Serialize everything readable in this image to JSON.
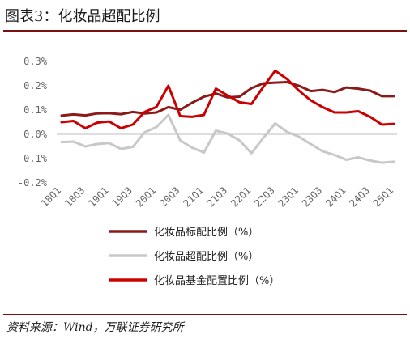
{
  "title": "图表3：化妆品超配比例",
  "source": "资料来源：Wind，万联证券研究所",
  "chart_data": {
    "type": "line",
    "title": "",
    "xlabel": "",
    "ylabel": "",
    "ylim": [
      -0.002,
      0.003
    ],
    "yticks": [
      {
        "value": 0.003,
        "label": "0.3%"
      },
      {
        "value": 0.002,
        "label": "0.2%"
      },
      {
        "value": 0.001,
        "label": "0.1%"
      },
      {
        "value": 0.0,
        "label": "0.0%"
      },
      {
        "value": -0.001,
        "label": "-0.1%"
      },
      {
        "value": -0.002,
        "label": "-0.2%"
      }
    ],
    "categories": [
      "18Q1",
      "18Q2",
      "18Q3",
      "18Q4",
      "19Q1",
      "19Q2",
      "19Q3",
      "19Q4",
      "20Q1",
      "20Q2",
      "20Q3",
      "20Q4",
      "21Q1",
      "21Q2",
      "21Q3",
      "21Q4",
      "22Q1",
      "22Q2",
      "22Q3",
      "22Q4",
      "23Q1",
      "23Q2",
      "23Q3",
      "23Q4",
      "24Q1",
      "24Q2",
      "24Q3",
      "24Q4",
      "25Q1"
    ],
    "xtick_labels": [
      "18Q1",
      "18Q3",
      "19Q1",
      "19Q3",
      "20Q1",
      "20Q3",
      "21Q1",
      "21Q3",
      "22Q1",
      "22Q3",
      "23Q1",
      "23Q3",
      "24Q1",
      "24Q3",
      "25Q1"
    ],
    "legend_position": "bottom",
    "series": [
      {
        "name": "化妆品标配比例（%）",
        "color": "#8b1a1a",
        "values": [
          0.00077,
          0.00082,
          0.00078,
          0.00086,
          0.00087,
          0.00083,
          0.00092,
          0.00086,
          0.0009,
          0.00112,
          0.00101,
          0.0013,
          0.00155,
          0.00168,
          0.00152,
          0.00155,
          0.0019,
          0.0021,
          0.00213,
          0.00215,
          0.002,
          0.00178,
          0.00183,
          0.00174,
          0.00193,
          0.00188,
          0.0018,
          0.00157,
          0.00157
        ]
      },
      {
        "name": "化妆品超配比例（%）",
        "color": "#c8c8c8",
        "values": [
          -0.00032,
          -0.0003,
          -0.0005,
          -0.0004,
          -0.00036,
          -0.0006,
          -0.00052,
          8e-05,
          0.0003,
          0.0008,
          -0.00025,
          -0.00055,
          -0.00075,
          0.00015,
          3e-05,
          -0.00025,
          -0.00078,
          -0.00015,
          0.00045,
          0.0001,
          -0.0001,
          -0.0004,
          -0.0007,
          -0.00085,
          -0.00105,
          -0.00095,
          -0.00108,
          -0.00117,
          -0.00113
        ]
      },
      {
        "name": "化妆品基金配置比例（%）",
        "color": "#cc0000",
        "values": [
          0.0005,
          0.00055,
          0.00025,
          0.00048,
          0.00053,
          0.00025,
          0.0004,
          0.00092,
          0.00113,
          0.002,
          0.00075,
          0.00072,
          0.0008,
          0.00188,
          0.0016,
          0.00132,
          0.00125,
          0.00195,
          0.00262,
          0.00228,
          0.0018,
          0.0014,
          0.00112,
          0.0009,
          0.0009,
          0.00095,
          0.00072,
          0.0004,
          0.00043
        ]
      }
    ]
  }
}
